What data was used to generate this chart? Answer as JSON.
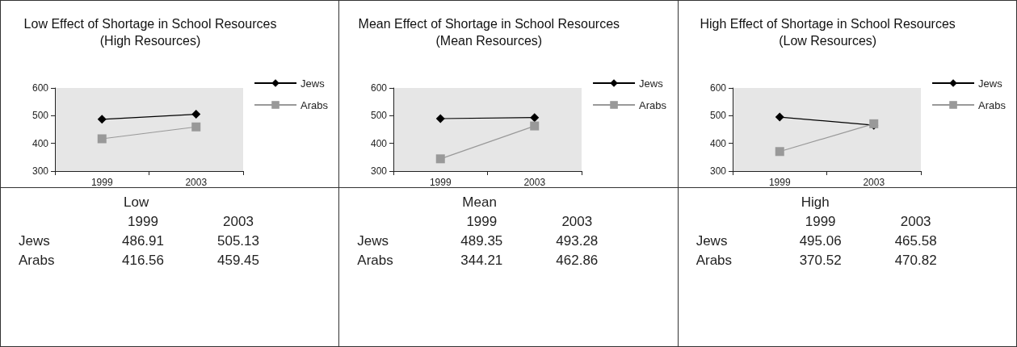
{
  "chart_data": [
    {
      "type": "line",
      "title": "Low Effect of Shortage in School Resources (High Resources)",
      "categories": [
        "1999",
        "2003"
      ],
      "series": [
        {
          "name": "Jews",
          "color": "#000000",
          "marker": "diamond",
          "values": [
            486.91,
            505.13
          ]
        },
        {
          "name": "Arabs",
          "color": "#999999",
          "marker": "square",
          "values": [
            416.56,
            459.45
          ]
        }
      ],
      "ylim": [
        300,
        600
      ],
      "yticks": [
        300,
        400,
        500,
        600
      ],
      "legend": "right",
      "data_labels": true,
      "annotations": [
        "Low"
      ]
    },
    {
      "type": "line",
      "title": "Mean Effect of Shortage in School Resources (Mean Resources)",
      "categories": [
        "1999",
        "2003"
      ],
      "series": [
        {
          "name": "Jews",
          "color": "#000000",
          "marker": "diamond",
          "values": [
            489.35,
            493.28
          ]
        },
        {
          "name": "Arabs",
          "color": "#999999",
          "marker": "square",
          "values": [
            344.21,
            462.86
          ]
        }
      ],
      "ylim": [
        300,
        600
      ],
      "yticks": [
        300,
        400,
        500,
        600
      ],
      "legend": "right",
      "data_labels": true,
      "annotations": [
        "Mean"
      ]
    },
    {
      "type": "line",
      "title": "High Effect of Shortage in School Resources (Low Resources)",
      "categories": [
        "1999",
        "2003"
      ],
      "series": [
        {
          "name": "Jews",
          "color": "#000000",
          "marker": "diamond",
          "values": [
            495.06,
            465.58
          ]
        },
        {
          "name": "Arabs",
          "color": "#999999",
          "marker": "square",
          "values": [
            370.52,
            470.82
          ]
        }
      ],
      "ylim": [
        300,
        600
      ],
      "yticks": [
        300,
        400,
        500,
        600
      ],
      "legend": "right",
      "data_labels": true,
      "annotations": [
        "High"
      ]
    }
  ]
}
